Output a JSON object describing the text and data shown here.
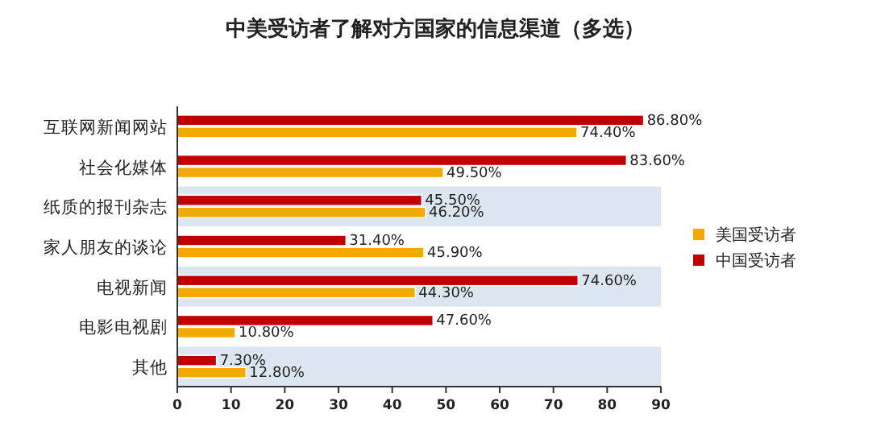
{
  "chart_data": {
    "type": "bar",
    "orientation": "horizontal",
    "title": "中美受访者了解对方国家的信息渠道（多选）",
    "categories": [
      "互联网新闻网站",
      "社会化媒体",
      "纸质的报刊杂志",
      "家人朋友的谈论",
      "电视新闻",
      "电影电视剧",
      "其他"
    ],
    "series": [
      {
        "name": "美国受访者",
        "color": "#f2a900",
        "values": [
          74.4,
          49.5,
          46.2,
          45.9,
          44.3,
          10.8,
          12.8
        ],
        "value_labels": [
          "74.40%",
          "49.50%",
          "46.20%",
          "45.90%",
          "44.30%",
          "10.80%",
          "12.80%"
        ]
      },
      {
        "name": "中国受访者",
        "color": "#c00000",
        "values": [
          86.8,
          83.6,
          45.5,
          31.4,
          74.6,
          47.6,
          7.3
        ],
        "value_labels": [
          "86.80%",
          "83.60%",
          "45.50%",
          "31.40%",
          "74.60%",
          "47.60%",
          "7.30%"
        ]
      }
    ],
    "xlim": [
      0,
      90
    ],
    "xticks": [
      0,
      10,
      20,
      30,
      40,
      50,
      60,
      70,
      80,
      90
    ],
    "legend": "right"
  }
}
